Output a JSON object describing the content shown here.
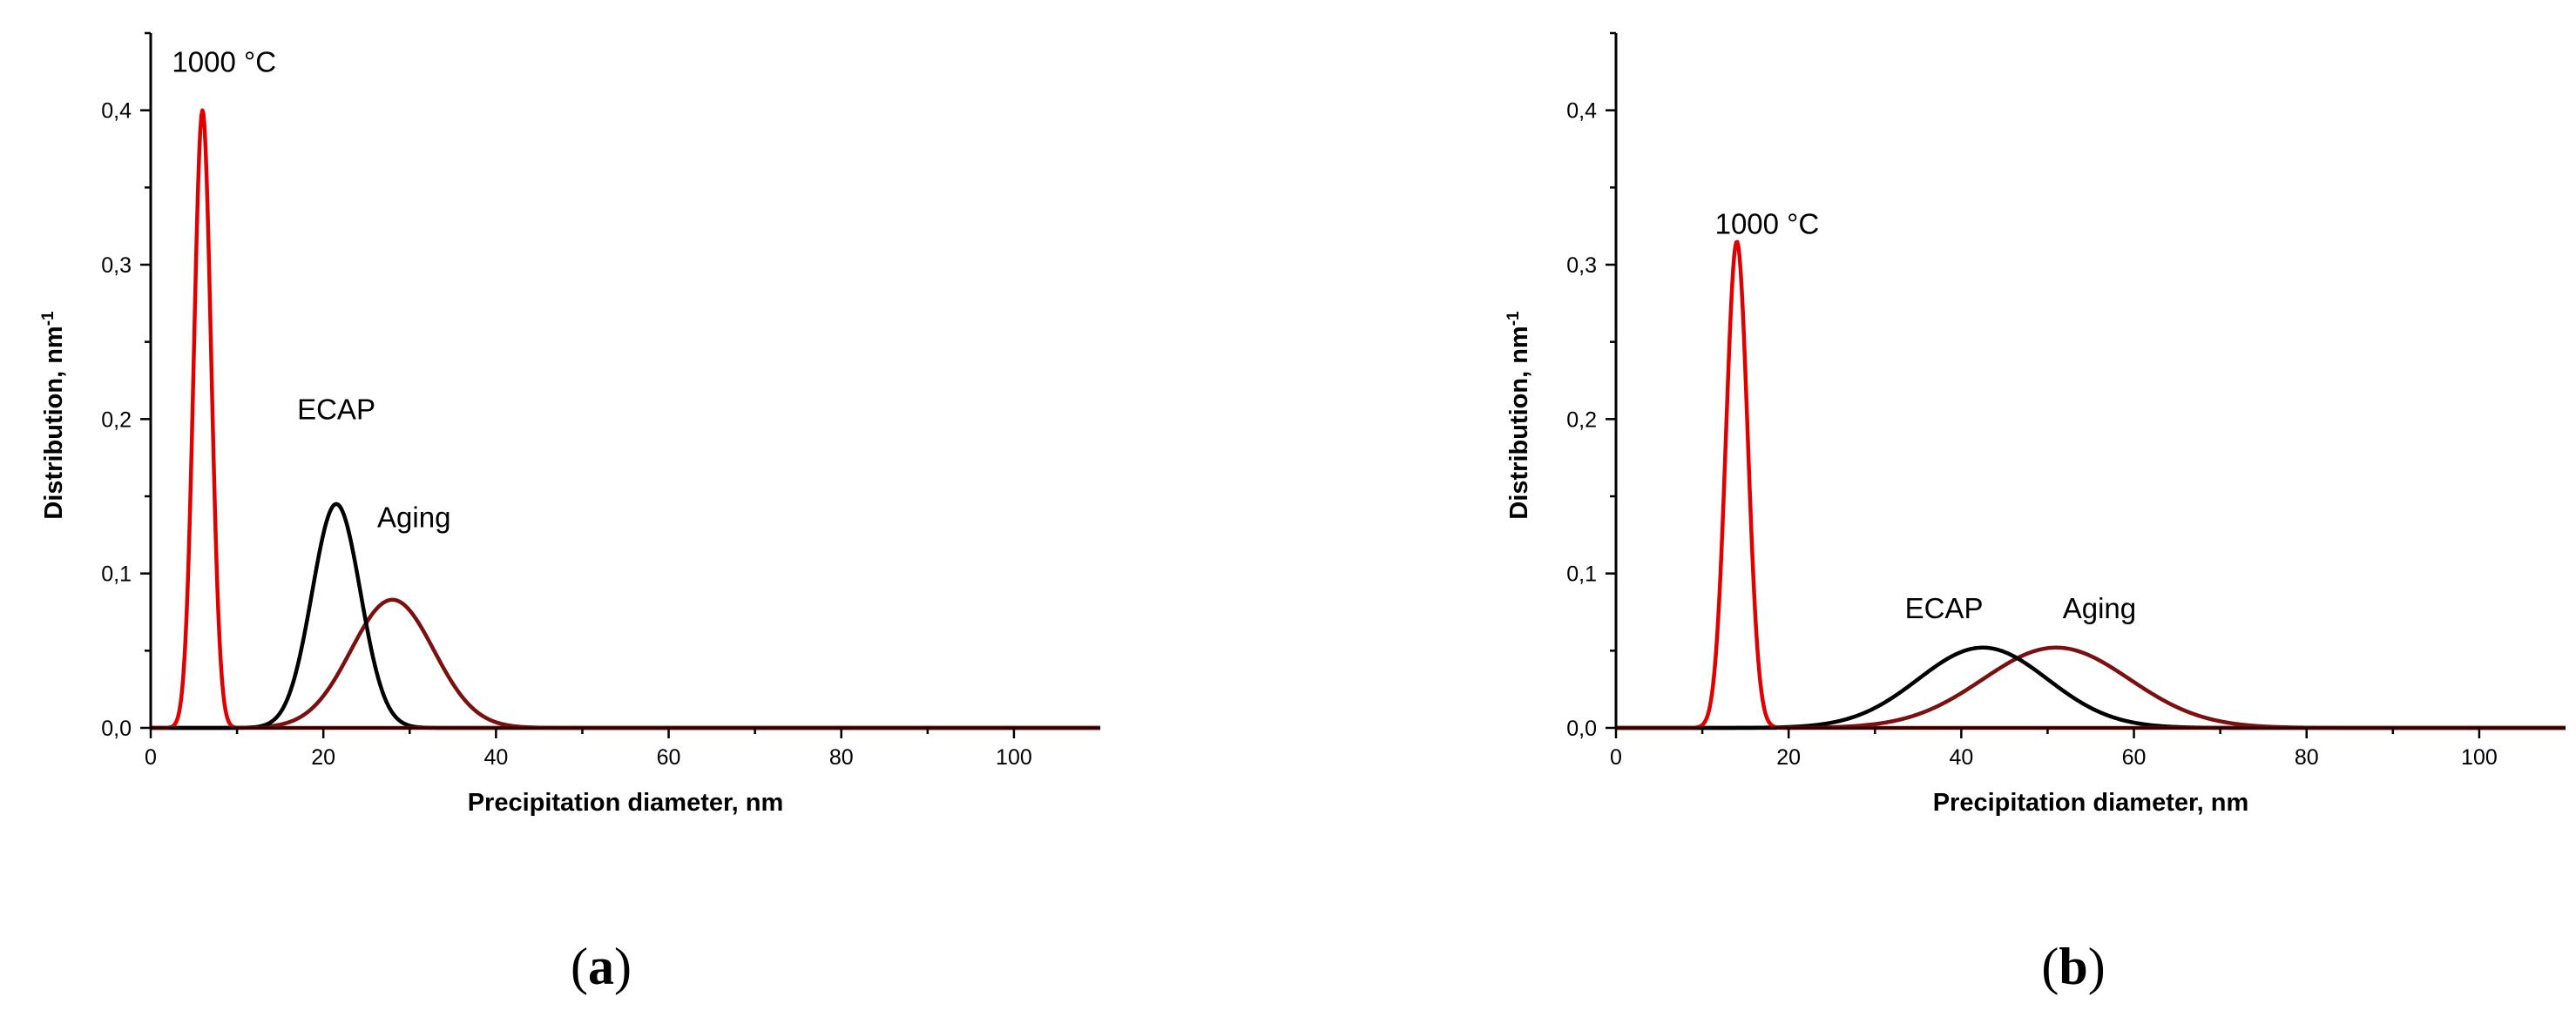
{
  "chart_data": [
    {
      "type": "line",
      "panel_label": {
        "open": "(",
        "letter": "a",
        "close": ")"
      },
      "xlabel": "Precipitation diameter, nm",
      "ylabel": "Distribution, nm",
      "ylabel_superscript": "-1",
      "xlim": [
        0,
        110
      ],
      "ylim": [
        0,
        0.45
      ],
      "xticks": [
        0,
        20,
        40,
        60,
        80,
        100
      ],
      "yticks": [
        0.0,
        0.1,
        0.2,
        0.3,
        0.4
      ],
      "xtick_labels": [
        "0",
        "20",
        "40",
        "60",
        "80",
        "100"
      ],
      "ytick_labels": [
        "0,0",
        "0,1",
        "0,2",
        "0,3",
        "0,4"
      ],
      "grid": false,
      "series": [
        {
          "name": "1000 °C",
          "color": "#e00000",
          "peak_x": 6,
          "peak_y": 0.4,
          "sigma": 1.0
        },
        {
          "name": "ECAP",
          "color": "#000000",
          "peak_x": 21.5,
          "peak_y": 0.145,
          "sigma": 2.8
        },
        {
          "name": "Aging",
          "color": "#7a1010",
          "peak_x": 28,
          "peak_y": 0.083,
          "sigma": 4.8
        }
      ],
      "annotations": [
        {
          "text": "1000 °C",
          "x": 8.5,
          "y": 0.425
        },
        {
          "text": "ECAP",
          "x": 21.5,
          "y": 0.2
        },
        {
          "text": "Aging",
          "x": 30.5,
          "y": 0.13
        }
      ]
    },
    {
      "type": "line",
      "panel_label": {
        "open": "(",
        "letter": "b",
        "close": ")"
      },
      "xlabel": "Precipitation diameter, nm",
      "ylabel": "Distribution, nm",
      "ylabel_superscript": "-1",
      "xlim": [
        0,
        110
      ],
      "ylim": [
        0,
        0.45
      ],
      "xticks": [
        0,
        20,
        40,
        60,
        80,
        100
      ],
      "yticks": [
        0.0,
        0.1,
        0.2,
        0.3,
        0.4
      ],
      "xtick_labels": [
        "0",
        "20",
        "40",
        "60",
        "80",
        "100"
      ],
      "ytick_labels": [
        "0,0",
        "0,1",
        "0,2",
        "0,3",
        "0,4"
      ],
      "grid": false,
      "series": [
        {
          "name": "1000 °C",
          "color": "#e00000",
          "peak_x": 14,
          "peak_y": 0.315,
          "sigma": 1.25
        },
        {
          "name": "ECAP",
          "color": "#000000",
          "peak_x": 42.5,
          "peak_y": 0.052,
          "sigma": 7.5
        },
        {
          "name": "Aging",
          "color": "#7a1010",
          "peak_x": 51,
          "peak_y": 0.052,
          "sigma": 8.5
        }
      ],
      "annotations": [
        {
          "text": "1000 °C",
          "x": 17.5,
          "y": 0.32
        },
        {
          "text": "ECAP",
          "x": 38,
          "y": 0.071
        },
        {
          "text": "Aging",
          "x": 56,
          "y": 0.071
        }
      ]
    }
  ]
}
